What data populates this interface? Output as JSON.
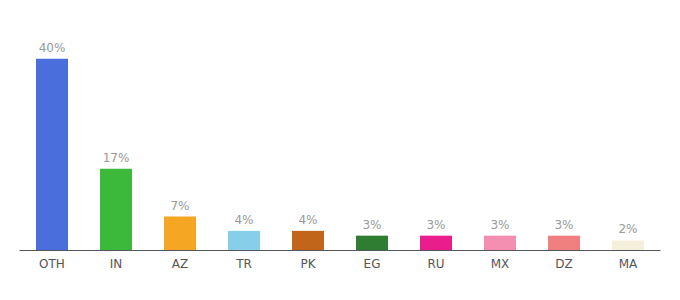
{
  "chart_data": {
    "type": "bar",
    "categories": [
      "OTH",
      "IN",
      "AZ",
      "TR",
      "PK",
      "EG",
      "RU",
      "MX",
      "DZ",
      "MA"
    ],
    "values": [
      40,
      17,
      7,
      4,
      4,
      3,
      3,
      3,
      3,
      2
    ],
    "value_labels": [
      "40%",
      "17%",
      "7%",
      "4%",
      "4%",
      "3%",
      "3%",
      "3%",
      "3%",
      "2%"
    ],
    "colors": [
      "#4a6fdc",
      "#3cb83a",
      "#f5a623",
      "#87ceeb",
      "#c0651a",
      "#2e7d32",
      "#e91e8c",
      "#f48fb1",
      "#f08080",
      "#f5f0dc"
    ],
    "ylim": [
      0,
      46
    ],
    "grid": false,
    "data_labels": true,
    "tick_labels": "x"
  }
}
